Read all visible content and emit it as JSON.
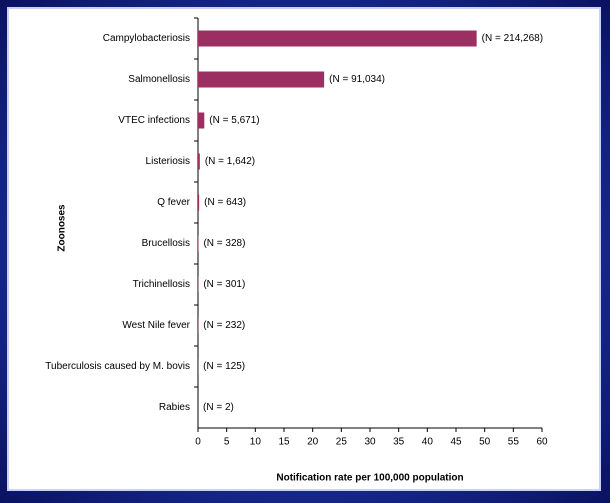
{
  "chart_data": {
    "type": "hbar",
    "categories": [
      "Campylobacteriosis",
      "Salmonellosis",
      "VTEC infections",
      "Listeriosis",
      "Q fever",
      "Brucellosis",
      "Trichinellosis",
      "West Nile fever",
      "Tuberculosis caused by M. bovis",
      "Rabies"
    ],
    "values": [
      48.6,
      22.0,
      1.1,
      0.32,
      0.2,
      0.08,
      0.06,
      0.05,
      0.03,
      0
    ],
    "annotations": [
      "(N = 214,268)",
      "(N = 91,034)",
      "(N = 5,671)",
      "(N = 1,642)",
      "(N = 643)",
      "(N = 328)",
      "(N = 301)",
      "(N = 232)",
      "(N = 125)",
      "(N = 2)"
    ],
    "color": "#9b2f62",
    "xlim": [
      0,
      60
    ],
    "xticks": [
      0,
      5,
      10,
      15,
      20,
      25,
      30,
      35,
      40,
      45,
      50,
      55,
      60
    ],
    "xlabel": "Notification rate per 100,000  population",
    "ylabel": "Zoonoses"
  }
}
